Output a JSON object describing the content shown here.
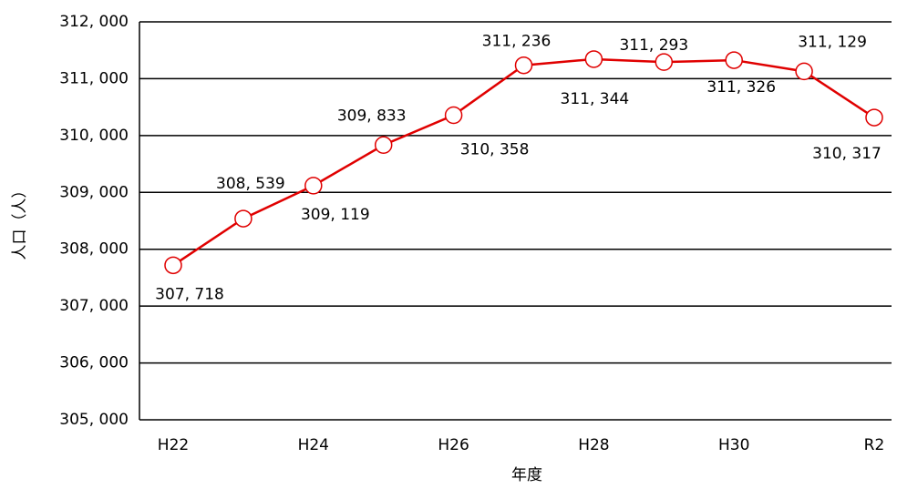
{
  "chart_data": {
    "type": "line",
    "x_label": "年度",
    "y_label": "人口（人）",
    "categories": [
      "H22",
      null,
      "H24",
      null,
      "H26",
      null,
      "H28",
      null,
      "H30",
      null,
      "R2"
    ],
    "series": [
      {
        "name": "人口",
        "color": "#e00000",
        "values": [
          307718,
          308539,
          309119,
          309833,
          310358,
          311236,
          311344,
          311293,
          311326,
          311129,
          310317
        ],
        "value_labels": [
          "307, 718",
          "308, 539",
          "309, 119",
          "309, 833",
          "310, 358",
          "311, 236",
          "311, 344",
          "311, 293",
          "311, 326",
          "311, 129",
          "310, 317"
        ]
      }
    ],
    "ylim": [
      305000,
      312000
    ],
    "yticks": [
      {
        "value": 305000,
        "label": "305, 000"
      },
      {
        "value": 306000,
        "label": "306, 000"
      },
      {
        "value": 307000,
        "label": "307, 000"
      },
      {
        "value": 308000,
        "label": "308, 000"
      },
      {
        "value": 309000,
        "label": "309, 000"
      },
      {
        "value": 310000,
        "label": "310, 000"
      },
      {
        "value": 311000,
        "label": "311, 000"
      },
      {
        "value": 312000,
        "label": "312, 000"
      }
    ],
    "grid": true
  }
}
